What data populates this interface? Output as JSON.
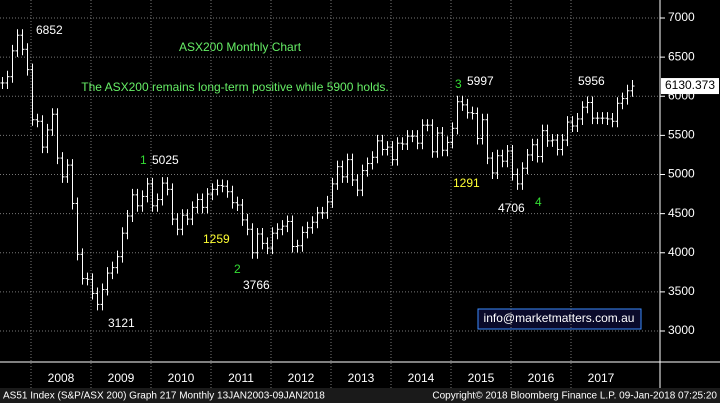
{
  "chart_data": {
    "type": "ohlc",
    "title": "ASX200 Monthly Chart",
    "subtitle": "The ASX200 remains long-term positive while 5900 holds.",
    "contact": "info@marketmatters.com.au",
    "footer_left": "AS51 Index (S&P/ASX 200) Graph 217  Monthly 13JAN2003-09JAN2018",
    "footer_right": "Copyright© 2018 Bloomberg Finance L.P.   09-Jan-2018 07:25:20",
    "color": "#ffffff",
    "grid": true,
    "year_labels": [
      "2008",
      "2009",
      "2010",
      "2011",
      "2012",
      "2013",
      "2014",
      "2015",
      "2016",
      "2017"
    ],
    "close": [
      6170,
      6250,
      6580,
      6780,
      6600,
      6340,
      5700,
      5680,
      5350,
      5570,
      5770,
      5210,
      4970,
      5120,
      4630,
      3980,
      3670,
      3660,
      3480,
      3340,
      3530,
      3740,
      3810,
      3950,
      4250,
      4470,
      4740,
      4600,
      4720,
      4880,
      4600,
      4680,
      4890,
      4810,
      4430,
      4300,
      4480,
      4430,
      4580,
      4680,
      4580,
      4750,
      4810,
      4860,
      4850,
      4780,
      4640,
      4610,
      4420,
      4300,
      4000,
      4240,
      4120,
      4060,
      4250,
      4300,
      4340,
      4400,
      4080,
      4090,
      4260,
      4320,
      4390,
      4510,
      4510,
      4650,
      4880,
      5100,
      4970,
      5190,
      4930,
      4800,
      5050,
      5140,
      5220,
      5430,
      5320,
      5350,
      5190,
      5400,
      5390,
      5490,
      5490,
      5400,
      5630,
      5630,
      5290,
      5530,
      5310,
      5410,
      5590,
      5930,
      5890,
      5790,
      5780,
      5460,
      5700,
      5210,
      5020,
      5240,
      5170,
      5300,
      5000,
      4880,
      5080,
      5250,
      5380,
      5230,
      5560,
      5430,
      5440,
      5320,
      5440,
      5670,
      5620,
      5710,
      5860,
      5920,
      5720,
      5720,
      5720,
      5710,
      5680,
      5910,
      5970,
      6070,
      6130.373
    ],
    "ylim": [
      2604,
      7230
    ],
    "yticks": [
      3000,
      3500,
      4000,
      4500,
      5000,
      5500,
      6000,
      6500,
      7000
    ],
    "annotations": [
      {
        "label": 6852,
        "color": "#ffffff"
      },
      {
        "label": 1,
        "color": "#33dd33"
      },
      {
        "label": 5025,
        "color": "#ffffff"
      },
      {
        "label": 1259,
        "color": "#ffff33"
      },
      {
        "label": 2,
        "color": "#33dd33"
      },
      {
        "label": 3766,
        "color": "#ffffff"
      },
      {
        "label": 3121,
        "color": "#ffffff"
      },
      {
        "label": 3,
        "color": "#33dd33"
      },
      {
        "label": 5997,
        "color": "#ffffff"
      },
      {
        "label": 1291,
        "color": "#ffff33"
      },
      {
        "label": 4706,
        "color": "#ffffff"
      },
      {
        "label": 4,
        "color": "#33dd33"
      },
      {
        "label": 5956,
        "color": "#ffffff"
      }
    ]
  }
}
